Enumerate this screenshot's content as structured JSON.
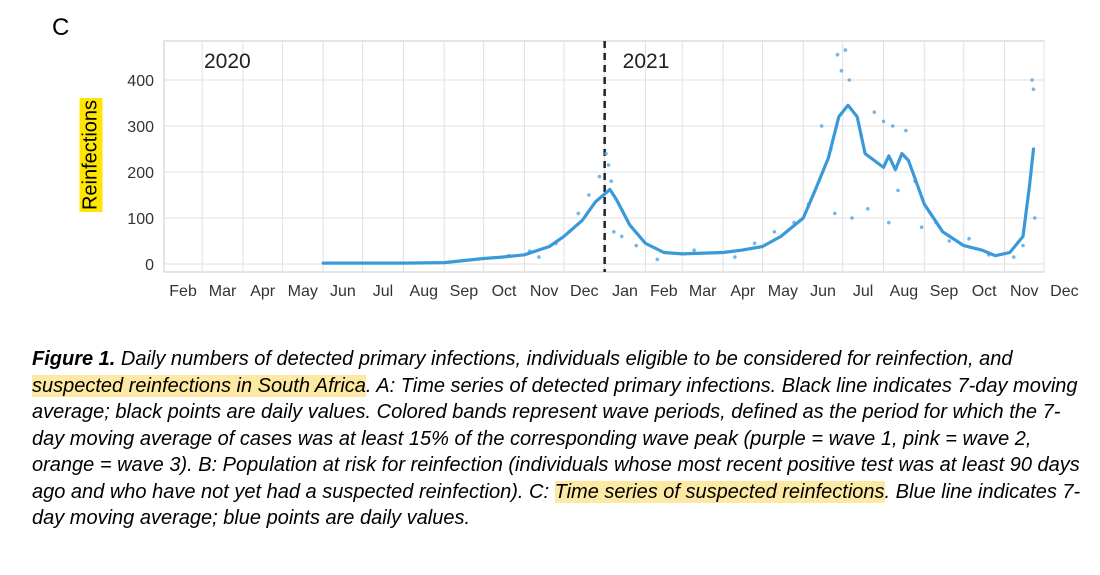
{
  "panel_label": "C",
  "chart_data": {
    "type": "line",
    "ylabel": "Reinfections",
    "ylim": [
      0,
      470
    ],
    "yticks": [
      0,
      100,
      200,
      300,
      400
    ],
    "x_domain": [
      "2020-02-01",
      "2021-12-01"
    ],
    "x_tick_labels": [
      "Feb",
      "Mar",
      "Apr",
      "May",
      "Jun",
      "Jul",
      "Aug",
      "Sep",
      "Oct",
      "Nov",
      "Dec",
      "Jan",
      "Feb",
      "Mar",
      "Apr",
      "May",
      "Jun",
      "Jul",
      "Aug",
      "Sep",
      "Oct",
      "Nov",
      "Dec"
    ],
    "year_labels": [
      "2020",
      "2021"
    ],
    "year_divider": "2021-01-01",
    "grid": true,
    "series": [
      {
        "style": "line",
        "color": "#3a9ad9",
        "points": [
          [
            "2020-06-01",
            2
          ],
          [
            "2020-07-01",
            2
          ],
          [
            "2020-08-01",
            2
          ],
          [
            "2020-09-01",
            3
          ],
          [
            "2020-10-01",
            12
          ],
          [
            "2020-10-15",
            15
          ],
          [
            "2020-11-01",
            20
          ],
          [
            "2020-11-20",
            38
          ],
          [
            "2020-12-01",
            60
          ],
          [
            "2020-12-15",
            95
          ],
          [
            "2020-12-25",
            135
          ],
          [
            "2021-01-05",
            162
          ],
          [
            "2021-01-10",
            140
          ],
          [
            "2021-01-20",
            85
          ],
          [
            "2021-02-01",
            45
          ],
          [
            "2021-02-15",
            25
          ],
          [
            "2021-03-01",
            22
          ],
          [
            "2021-04-01",
            25
          ],
          [
            "2021-04-15",
            30
          ],
          [
            "2021-05-01",
            38
          ],
          [
            "2021-05-15",
            60
          ],
          [
            "2021-06-01",
            100
          ],
          [
            "2021-06-10",
            160
          ],
          [
            "2021-06-20",
            230
          ],
          [
            "2021-06-28",
            320
          ],
          [
            "2021-07-05",
            345
          ],
          [
            "2021-07-12",
            320
          ],
          [
            "2021-07-18",
            240
          ],
          [
            "2021-07-25",
            225
          ],
          [
            "2021-08-01",
            210
          ],
          [
            "2021-08-05",
            235
          ],
          [
            "2021-08-10",
            205
          ],
          [
            "2021-08-15",
            240
          ],
          [
            "2021-08-20",
            225
          ],
          [
            "2021-09-01",
            130
          ],
          [
            "2021-09-15",
            70
          ],
          [
            "2021-10-01",
            40
          ],
          [
            "2021-10-15",
            30
          ],
          [
            "2021-10-25",
            18
          ],
          [
            "2021-11-05",
            25
          ],
          [
            "2021-11-15",
            60
          ],
          [
            "2021-11-20",
            170
          ],
          [
            "2021-11-23",
            250
          ]
        ]
      },
      {
        "style": "points",
        "color": "#5aa9e6",
        "points": [
          [
            "2020-10-20",
            18
          ],
          [
            "2020-11-05",
            28
          ],
          [
            "2020-11-12",
            15
          ],
          [
            "2020-11-25",
            45
          ],
          [
            "2020-12-05",
            70
          ],
          [
            "2020-12-12",
            110
          ],
          [
            "2020-12-20",
            150
          ],
          [
            "2020-12-28",
            190
          ],
          [
            "2021-01-02",
            240
          ],
          [
            "2021-01-04",
            215
          ],
          [
            "2021-01-06",
            180
          ],
          [
            "2021-01-08",
            70
          ],
          [
            "2021-01-14",
            60
          ],
          [
            "2021-01-25",
            40
          ],
          [
            "2021-02-10",
            10
          ],
          [
            "2021-03-10",
            30
          ],
          [
            "2021-04-10",
            15
          ],
          [
            "2021-04-25",
            45
          ],
          [
            "2021-05-10",
            70
          ],
          [
            "2021-05-25",
            90
          ],
          [
            "2021-06-05",
            130
          ],
          [
            "2021-06-15",
            300
          ],
          [
            "2021-06-22",
            250
          ],
          [
            "2021-06-25",
            110
          ],
          [
            "2021-06-27",
            455
          ],
          [
            "2021-06-30",
            420
          ],
          [
            "2021-07-03",
            465
          ],
          [
            "2021-07-06",
            400
          ],
          [
            "2021-07-08",
            100
          ],
          [
            "2021-07-15",
            280
          ],
          [
            "2021-07-20",
            120
          ],
          [
            "2021-07-25",
            330
          ],
          [
            "2021-08-01",
            310
          ],
          [
            "2021-08-05",
            90
          ],
          [
            "2021-08-08",
            300
          ],
          [
            "2021-08-12",
            160
          ],
          [
            "2021-08-18",
            290
          ],
          [
            "2021-08-25",
            180
          ],
          [
            "2021-08-30",
            80
          ],
          [
            "2021-09-10",
            90
          ],
          [
            "2021-09-20",
            50
          ],
          [
            "2021-10-05",
            55
          ],
          [
            "2021-10-20",
            20
          ],
          [
            "2021-11-08",
            15
          ],
          [
            "2021-11-15",
            40
          ],
          [
            "2021-11-22",
            400
          ],
          [
            "2021-11-23",
            380
          ],
          [
            "2021-11-24",
            100
          ]
        ]
      }
    ]
  },
  "caption": {
    "lead": "Figure 1.",
    "t1": " Daily numbers of detected primary infections, individuals eligible to be considered for reinfection, and ",
    "h1": "suspected reinfections in South Africa",
    "t2": ". A: Time series of detected primary infections. Black line indicates 7-day moving average; black points are daily values. Colored bands represent wave periods, defined as the period for which the 7-day moving average of cases was at least 15% of the corresponding wave peak (purple = wave 1, pink = wave 2, orange = wave 3). B: Population at risk for reinfection (individuals whose most recent positive test was at least 90 days ago and who have not yet had a suspected reinfection). C: ",
    "h2": "Time series of suspected reinfections",
    "t3": ". Blue line indicates 7-day moving average; blue points are daily values."
  }
}
